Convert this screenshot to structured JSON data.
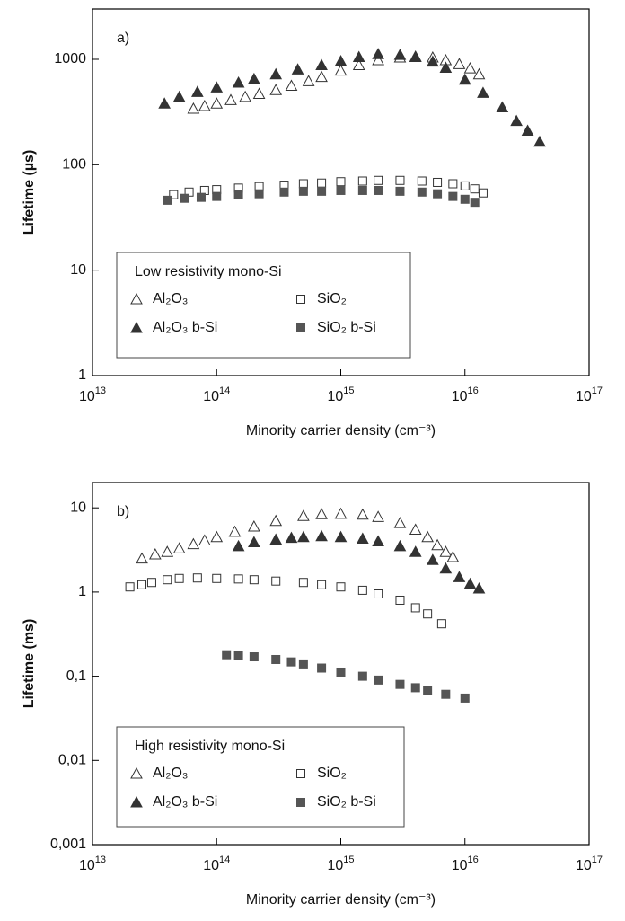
{
  "chart_data": [
    {
      "type": "scatter",
      "panel_label": "a)",
      "xlabel": "Minority carrier density (cm⁻³)",
      "ylabel": "Lifetime (µs)",
      "xscale": "log",
      "yscale": "log",
      "xlim": [
        10000000000000.0,
        1e+17
      ],
      "ylim": [
        1,
        3000
      ],
      "xticks": [
        {
          "value": 10000000000000.0,
          "label": "10",
          "exponent": "13"
        },
        {
          "value": 100000000000000.0,
          "label": "10",
          "exponent": "14"
        },
        {
          "value": 1000000000000000.0,
          "label": "10",
          "exponent": "15"
        },
        {
          "value": 1e+16,
          "label": "10",
          "exponent": "16"
        },
        {
          "value": 1e+17,
          "label": "10",
          "exponent": "17"
        }
      ],
      "yticks": [
        1,
        10,
        100,
        1000
      ],
      "legend_title": "Low resistivity mono-Si",
      "series": [
        {
          "name": "Al₂O₃",
          "marker": "triangle",
          "filled": false,
          "color": "#333333",
          "x": [
            65000000000000.0,
            80000000000000.0,
            100000000000000.0,
            130000000000000.0,
            170000000000000.0,
            220000000000000.0,
            300000000000000.0,
            400000000000000.0,
            550000000000000.0,
            700000000000000.0,
            1000000000000000.0,
            1400000000000000.0,
            2000000000000000.0,
            3000000000000000.0,
            4000000000000000.0,
            5500000000000000.0,
            7000000000000000.0,
            9000000000000000.0,
            1.1e+16,
            1.3e+16
          ],
          "y": [
            340,
            360,
            380,
            410,
            440,
            470,
            510,
            560,
            620,
            680,
            780,
            880,
            980,
            1040,
            1060,
            1040,
            980,
            900,
            820,
            720
          ]
        },
        {
          "name": "Al₂O₃ b-Si",
          "marker": "triangle",
          "filled": true,
          "color": "#333333",
          "x": [
            38000000000000.0,
            50000000000000.0,
            70000000000000.0,
            100000000000000.0,
            150000000000000.0,
            200000000000000.0,
            300000000000000.0,
            450000000000000.0,
            700000000000000.0,
            1000000000000000.0,
            1400000000000000.0,
            2000000000000000.0,
            3000000000000000.0,
            4000000000000000.0,
            5500000000000000.0,
            7000000000000000.0,
            1e+16,
            1.4e+16,
            2e+16,
            2.6e+16,
            3.2e+16,
            4e+16
          ],
          "y": [
            380,
            440,
            490,
            540,
            600,
            650,
            720,
            800,
            880,
            960,
            1050,
            1120,
            1100,
            1050,
            950,
            830,
            640,
            480,
            350,
            260,
            210,
            165
          ]
        },
        {
          "name": "SiO₂",
          "marker": "square",
          "filled": false,
          "color": "#333333",
          "x": [
            45000000000000.0,
            60000000000000.0,
            80000000000000.0,
            100000000000000.0,
            150000000000000.0,
            220000000000000.0,
            350000000000000.0,
            500000000000000.0,
            700000000000000.0,
            1000000000000000.0,
            1500000000000000.0,
            2000000000000000.0,
            3000000000000000.0,
            4500000000000000.0,
            6000000000000000.0,
            8000000000000000.0,
            1e+16,
            1.2e+16,
            1.4e+16
          ],
          "y": [
            52,
            55,
            57,
            58,
            60,
            62,
            64,
            66,
            67,
            69,
            70,
            71,
            71,
            70,
            68,
            66,
            63,
            59,
            54
          ]
        },
        {
          "name": "SiO₂ b-Si",
          "marker": "square",
          "filled": true,
          "color": "#555555",
          "x": [
            40000000000000.0,
            55000000000000.0,
            75000000000000.0,
            100000000000000.0,
            150000000000000.0,
            220000000000000.0,
            350000000000000.0,
            500000000000000.0,
            700000000000000.0,
            1000000000000000.0,
            1500000000000000.0,
            2000000000000000.0,
            3000000000000000.0,
            4500000000000000.0,
            6000000000000000.0,
            8000000000000000.0,
            1e+16,
            1.2e+16
          ],
          "y": [
            46,
            48,
            49,
            50,
            52,
            53,
            55,
            56,
            56,
            57,
            57,
            57,
            56,
            55,
            53,
            50,
            47,
            44
          ]
        }
      ]
    },
    {
      "type": "scatter",
      "panel_label": "b)",
      "xlabel": "Minority carrier density (cm⁻³)",
      "ylabel": "Lifetime (ms)",
      "xscale": "log",
      "yscale": "log",
      "xlim": [
        10000000000000.0,
        1e+17
      ],
      "ylim": [
        0.001,
        20
      ],
      "xticks": [
        {
          "value": 10000000000000.0,
          "label": "10",
          "exponent": "13"
        },
        {
          "value": 100000000000000.0,
          "label": "10",
          "exponent": "14"
        },
        {
          "value": 1000000000000000.0,
          "label": "10",
          "exponent": "15"
        },
        {
          "value": 1e+16,
          "label": "10",
          "exponent": "16"
        },
        {
          "value": 1e+17,
          "label": "10",
          "exponent": "17"
        }
      ],
      "yticks": [
        {
          "value": 0.001,
          "label": "0,001"
        },
        {
          "value": 0.01,
          "label": "0,01"
        },
        {
          "value": 0.1,
          "label": "0,1"
        },
        1,
        10
      ],
      "legend_title": "High resistivity mono-Si",
      "series": [
        {
          "name": "Al₂O₃",
          "marker": "triangle",
          "filled": false,
          "color": "#333333",
          "x": [
            25000000000000.0,
            32000000000000.0,
            40000000000000.0,
            50000000000000.0,
            65000000000000.0,
            80000000000000.0,
            100000000000000.0,
            140000000000000.0,
            200000000000000.0,
            300000000000000.0,
            500000000000000.0,
            700000000000000.0,
            1000000000000000.0,
            1500000000000000.0,
            2000000000000000.0,
            3000000000000000.0,
            4000000000000000.0,
            5000000000000000.0,
            6000000000000000.0,
            7000000000000000.0,
            8000000000000000.0
          ],
          "y": [
            2.5,
            2.8,
            3.0,
            3.3,
            3.7,
            4.1,
            4.5,
            5.2,
            6.0,
            7.0,
            8.0,
            8.4,
            8.5,
            8.3,
            7.8,
            6.6,
            5.5,
            4.5,
            3.6,
            3.0,
            2.6
          ]
        },
        {
          "name": "Al₂O₃ b-Si",
          "marker": "triangle",
          "filled": true,
          "color": "#333333",
          "x": [
            150000000000000.0,
            200000000000000.0,
            300000000000000.0,
            400000000000000.0,
            500000000000000.0,
            700000000000000.0,
            1000000000000000.0,
            1500000000000000.0,
            2000000000000000.0,
            3000000000000000.0,
            4000000000000000.0,
            5500000000000000.0,
            7000000000000000.0,
            9000000000000000.0,
            1.1e+16,
            1.3e+16
          ],
          "y": [
            3.5,
            3.9,
            4.2,
            4.4,
            4.5,
            4.6,
            4.5,
            4.3,
            4.0,
            3.5,
            3.0,
            2.4,
            1.9,
            1.5,
            1.25,
            1.1
          ]
        },
        {
          "name": "SiO₂",
          "marker": "square",
          "filled": false,
          "color": "#333333",
          "x": [
            20000000000000.0,
            25000000000000.0,
            30000000000000.0,
            40000000000000.0,
            50000000000000.0,
            70000000000000.0,
            100000000000000.0,
            150000000000000.0,
            200000000000000.0,
            300000000000000.0,
            500000000000000.0,
            700000000000000.0,
            1000000000000000.0,
            1500000000000000.0,
            2000000000000000.0,
            3000000000000000.0,
            4000000000000000.0,
            5000000000000000.0,
            6500000000000000.0
          ],
          "y": [
            1.15,
            1.22,
            1.3,
            1.4,
            1.45,
            1.47,
            1.45,
            1.43,
            1.4,
            1.35,
            1.3,
            1.22,
            1.15,
            1.05,
            0.95,
            0.8,
            0.65,
            0.55,
            0.42
          ]
        },
        {
          "name": "SiO₂ b-Si",
          "marker": "square",
          "filled": true,
          "color": "#555555",
          "x": [
            120000000000000.0,
            150000000000000.0,
            200000000000000.0,
            300000000000000.0,
            400000000000000.0,
            500000000000000.0,
            700000000000000.0,
            1000000000000000.0,
            1500000000000000.0,
            2000000000000000.0,
            3000000000000000.0,
            4000000000000000.0,
            5000000000000000.0,
            7000000000000000.0,
            1e+16
          ],
          "y": [
            0.18,
            0.178,
            0.17,
            0.158,
            0.148,
            0.14,
            0.125,
            0.112,
            0.1,
            0.09,
            0.08,
            0.073,
            0.068,
            0.061,
            0.055
          ]
        }
      ]
    }
  ]
}
